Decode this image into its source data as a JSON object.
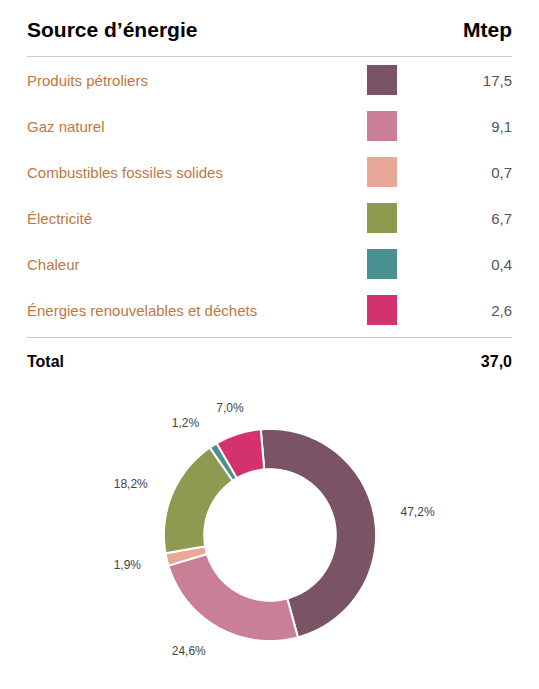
{
  "chart_data": [
    {
      "type": "table",
      "columns": [
        "Source d’énergie",
        "Mtep"
      ],
      "rows": [
        {
          "label": "Produits pétroliers",
          "value": "17,5",
          "color": "#7a5464"
        },
        {
          "label": "Gaz naturel",
          "value": "9,1",
          "color": "#c97f96"
        },
        {
          "label": "Combustibles fossiles solides",
          "value": "0,7",
          "color": "#e8a898"
        },
        {
          "label": "Électricité",
          "value": "6,7",
          "color": "#8e9a50"
        },
        {
          "label": "Chaleur",
          "value": "0,4",
          "color": "#4a9090"
        },
        {
          "label": "Énergies renouvelables et déchets",
          "value": "2,6",
          "color": "#d4326e"
        }
      ],
      "total": {
        "label": "Total",
        "value": "37,0"
      },
      "label_color": "#c07840",
      "text_color": "#555555"
    },
    {
      "type": "pie",
      "values": [
        47.2,
        24.6,
        1.9,
        18.2,
        1.2,
        7.0
      ],
      "value_labels": [
        "47,2%",
        "24,6%",
        "1,9%",
        "18,2%",
        "1,2%",
        "7,0%"
      ],
      "colors": [
        "#7a5464",
        "#c97f96",
        "#e8a898",
        "#8e9a50",
        "#4a9090",
        "#d4326e"
      ],
      "data_labels": true
    }
  ]
}
